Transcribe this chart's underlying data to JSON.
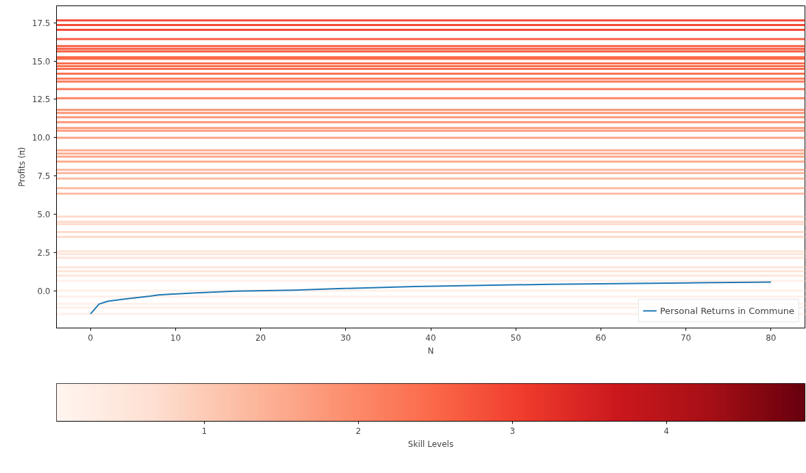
{
  "chart_data": {
    "type": "line",
    "xlabel": "N",
    "ylabel": "Profits (π)",
    "clabel": "Skill Levels",
    "xlim": [
      -4,
      84
    ],
    "ylim": [
      -2.41,
      18.6
    ],
    "xticks": [
      0,
      10,
      20,
      30,
      40,
      50,
      60,
      70,
      80
    ],
    "yticks": [
      {
        "value": 0,
        "label": "0.0"
      },
      {
        "value": 2.5,
        "label": "2.5"
      },
      {
        "value": 5,
        "label": "5.0"
      },
      {
        "value": 7.5,
        "label": "7.5"
      },
      {
        "value": 10,
        "label": "10.0"
      },
      {
        "value": 12.5,
        "label": "12.5"
      },
      {
        "value": 15,
        "label": "15.0"
      },
      {
        "value": 17.5,
        "label": "17.5"
      }
    ],
    "clim": [
      0.04,
      4.9
    ],
    "cticks": [
      1,
      2,
      3,
      4
    ],
    "grid": false,
    "legend": "bottom right",
    "series": [
      {
        "name": "Personal Returns in Commune",
        "color": "#1f77b4",
        "x": [
          0,
          1,
          2,
          4,
          7,
          8,
          12,
          17,
          24,
          28,
          38,
          54,
          70,
          80
        ],
        "values": [
          -1.49,
          -0.85,
          -0.67,
          -0.52,
          -0.33,
          -0.25,
          -0.13,
          -0.01,
          0.06,
          0.14,
          0.3,
          0.44,
          0.53,
          0.58
        ]
      }
    ],
    "ref_lines": [
      {
        "axis": "y",
        "value": 17.65,
        "color": "#f34a36"
      },
      {
        "axis": "y",
        "value": 17.35,
        "color": "#f34a36"
      },
      {
        "axis": "y",
        "value": 17.04,
        "color": "#f34a36"
      },
      {
        "axis": "y",
        "value": 16.43,
        "color": "#f85f43"
      },
      {
        "axis": "y",
        "value": 15.97,
        "color": "#f85f43"
      },
      {
        "axis": "y",
        "value": 15.79,
        "color": "#f85f43"
      },
      {
        "axis": "y",
        "value": 15.63,
        "color": "#f85f43"
      },
      {
        "axis": "y",
        "value": 15.25,
        "color": "#fb6a4a"
      },
      {
        "axis": "y",
        "value": 15.15,
        "color": "#fb6a4a"
      },
      {
        "axis": "y",
        "value": 14.85,
        "color": "#fb7050"
      },
      {
        "axis": "y",
        "value": 14.67,
        "color": "#fb7050"
      },
      {
        "axis": "y",
        "value": 14.49,
        "color": "#fb7050"
      },
      {
        "axis": "y",
        "value": 14.18,
        "color": "#fb7050"
      },
      {
        "axis": "y",
        "value": 13.85,
        "color": "#fc7b5c"
      },
      {
        "axis": "y",
        "value": 13.66,
        "color": "#fc7b5c"
      },
      {
        "axis": "y",
        "value": 13.17,
        "color": "#fc7b5c"
      },
      {
        "axis": "y",
        "value": 12.58,
        "color": "#fc8464"
      },
      {
        "axis": "y",
        "value": 11.82,
        "color": "#fc9474"
      },
      {
        "axis": "y",
        "value": 11.62,
        "color": "#fc9474"
      },
      {
        "axis": "y",
        "value": 11.34,
        "color": "#fc9474"
      },
      {
        "axis": "y",
        "value": 11.01,
        "color": "#fc9474"
      },
      {
        "axis": "y",
        "value": 10.63,
        "color": "#fc9c7d"
      },
      {
        "axis": "y",
        "value": 10.45,
        "color": "#fc9c7d"
      },
      {
        "axis": "y",
        "value": 9.99,
        "color": "#fca285"
      },
      {
        "axis": "y",
        "value": 9.18,
        "color": "#fcab8f"
      },
      {
        "axis": "y",
        "value": 8.97,
        "color": "#fcab8f"
      },
      {
        "axis": "y",
        "value": 8.77,
        "color": "#fcab8f"
      },
      {
        "axis": "y",
        "value": 8.44,
        "color": "#fcab8f"
      },
      {
        "axis": "y",
        "value": 7.9,
        "color": "#fcb89f"
      },
      {
        "axis": "y",
        "value": 7.69,
        "color": "#fcb89f"
      },
      {
        "axis": "y",
        "value": 7.33,
        "color": "#fcbea5"
      },
      {
        "axis": "y",
        "value": 6.71,
        "color": "#fcbea5"
      },
      {
        "axis": "y",
        "value": 6.35,
        "color": "#fcbea5"
      },
      {
        "axis": "y",
        "value": 4.85,
        "color": "#fedbcc"
      },
      {
        "axis": "y",
        "value": 4.52,
        "color": "#fedbcc"
      },
      {
        "axis": "y",
        "value": 4.36,
        "color": "#fedbcc"
      },
      {
        "axis": "y",
        "value": 3.85,
        "color": "#fedbcc"
      },
      {
        "axis": "y",
        "value": 3.53,
        "color": "#fedbcc"
      },
      {
        "axis": "y",
        "value": 2.59,
        "color": "#fee5d9"
      },
      {
        "axis": "y",
        "value": 2.41,
        "color": "#fee5d9"
      },
      {
        "axis": "y",
        "value": 2.17,
        "color": "#fee5d9"
      },
      {
        "axis": "y",
        "value": 1.55,
        "color": "#fee5d9"
      },
      {
        "axis": "y",
        "value": 1.29,
        "color": "#fee5d9"
      },
      {
        "axis": "y",
        "value": 1.01,
        "color": "#fee5d9"
      },
      {
        "axis": "y",
        "value": 0.67,
        "color": "#fff0e9"
      },
      {
        "axis": "y",
        "value": 0.03,
        "color": "#fff0e9"
      },
      {
        "axis": "y",
        "value": -0.37,
        "color": "#fff0e9"
      },
      {
        "axis": "y",
        "value": -0.83,
        "color": "#fff0e9"
      },
      {
        "axis": "y",
        "value": -1.08,
        "color": "#fff0e9"
      },
      {
        "axis": "y",
        "value": -1.49,
        "color": "#fff0e9"
      }
    ]
  }
}
